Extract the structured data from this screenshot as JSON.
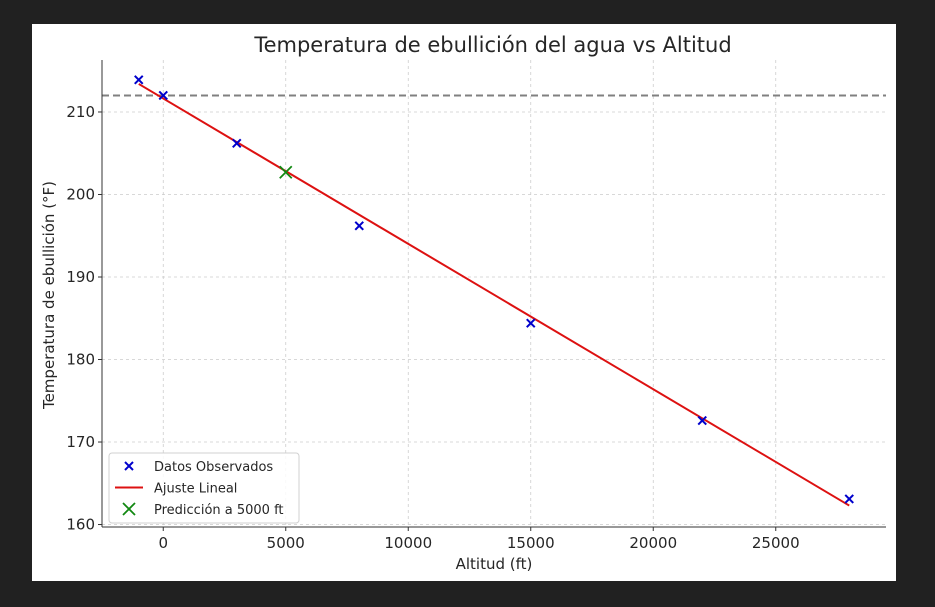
{
  "chart_data": {
    "type": "scatter",
    "title": "Temperatura de ebullición del agua vs Altitud",
    "xlabel": "Altitud (ft)",
    "ylabel": "Temperatura de ebullición (°F)",
    "xlim": [
      -2500,
      29500
    ],
    "ylim": [
      159.7,
      216.3
    ],
    "x_ticks": [
      0,
      5000,
      10000,
      15000,
      20000,
      25000
    ],
    "y_ticks": [
      160,
      170,
      180,
      190,
      200,
      210
    ],
    "grid": true,
    "grid_style": "dashed",
    "legend_position": "lower-left",
    "reference_line": {
      "y": 212,
      "color": "#808080",
      "style": "dashed"
    },
    "series": [
      {
        "name": "Datos Observados",
        "kind": "scatter",
        "marker": "x",
        "color": "#0000cc",
        "points": [
          {
            "x": -1000,
            "y": 213.9
          },
          {
            "x": 0,
            "y": 212.0
          },
          {
            "x": 3000,
            "y": 206.2
          },
          {
            "x": 8000,
            "y": 196.2
          },
          {
            "x": 15000,
            "y": 184.4
          },
          {
            "x": 22000,
            "y": 172.6
          },
          {
            "x": 28000,
            "y": 163.1
          }
        ]
      },
      {
        "name": "Ajuste Lineal",
        "kind": "line",
        "color": "#dd1111",
        "points": [
          {
            "x": -1000,
            "y": 213.4
          },
          {
            "x": 28000,
            "y": 162.3
          }
        ]
      },
      {
        "name": "Predicción a 5000 ft",
        "kind": "scatter",
        "marker": "x",
        "color": "#118811",
        "points": [
          {
            "x": 5000,
            "y": 202.7
          }
        ]
      }
    ]
  }
}
